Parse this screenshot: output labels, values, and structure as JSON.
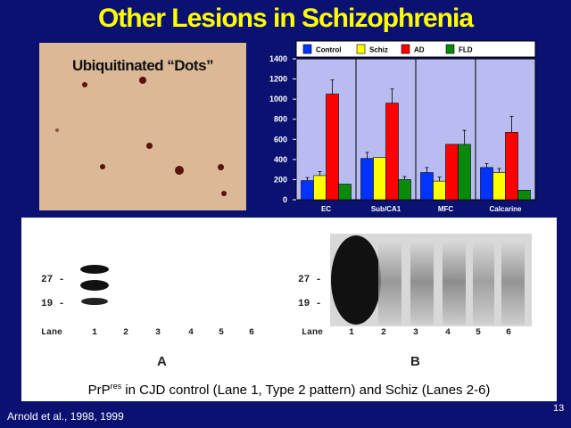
{
  "slide": {
    "title": "Other Lesions in Schizophrenia",
    "citation": "Arnold et al., 1998, 1999",
    "page_number": "13"
  },
  "micrograph": {
    "label": "Ubiquitinated “Dots”"
  },
  "chart_data": {
    "type": "bar",
    "categories": [
      "EC",
      "Sub/CA1",
      "MFC",
      "Calcarine"
    ],
    "series": [
      {
        "name": "Control",
        "color": "#0033ff",
        "values": [
          190,
          410,
          270,
          320
        ],
        "errors": [
          30,
          60,
          50,
          40
        ]
      },
      {
        "name": "Schiz",
        "color": "#ffff00",
        "values": [
          240,
          420,
          185,
          270
        ],
        "errors": [
          40,
          0,
          40,
          40
        ]
      },
      {
        "name": "AD",
        "color": "#ff0000",
        "values": [
          1050,
          960,
          550,
          670
        ],
        "errors": [
          140,
          140,
          0,
          160
        ]
      },
      {
        "name": "FLD",
        "color": "#0a8a0a",
        "values": [
          155,
          200,
          550,
          95
        ],
        "errors": [
          0,
          30,
          140,
          0
        ]
      }
    ],
    "yticks": [
      "0",
      "200",
      "400",
      "600",
      "800",
      "1000",
      "1200",
      "1400"
    ],
    "ylim": [
      0,
      1400
    ],
    "legend": "top",
    "grid": false
  },
  "blot": {
    "markers": [
      "27 -",
      "19 -"
    ],
    "lane_label": "Lane",
    "lanes": [
      "1",
      "2",
      "3",
      "4",
      "5",
      "6"
    ],
    "panel_a": "A",
    "panel_b": "B",
    "caption_pre": "PrP",
    "caption_sup": "res",
    "caption_post": " in CJD control (Lane 1, Type 2 pattern) and Schiz (Lanes 2-6)"
  }
}
